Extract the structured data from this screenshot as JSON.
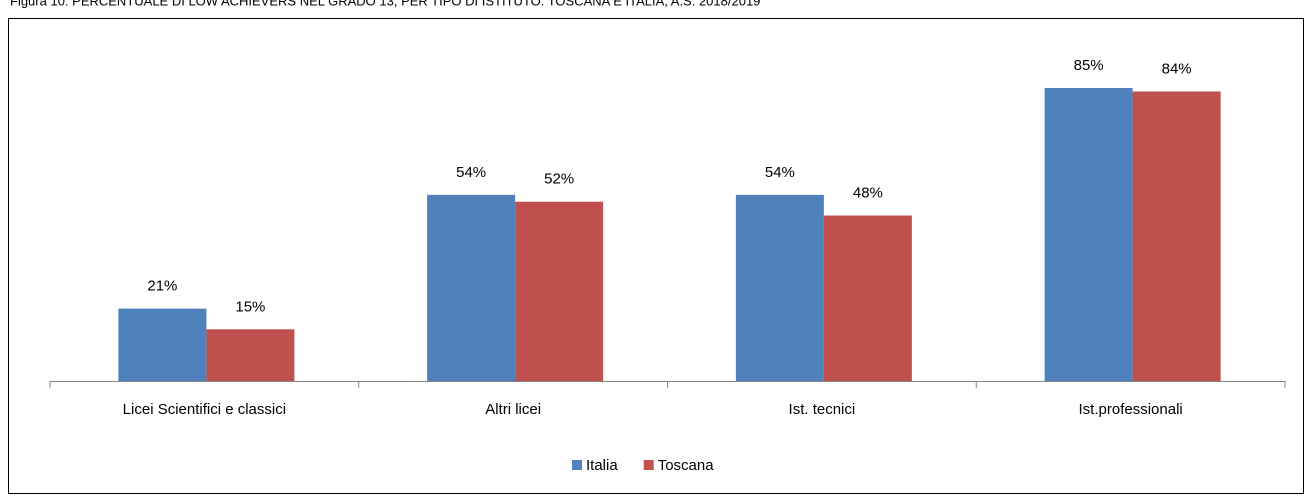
{
  "chart_data": {
    "type": "bar",
    "title": "Figura 10: PERCENTUALE DI LOW ACHIEVERS NEL GRADO 13, PER TIPO DI ISTITUTO. TOSCANA E ITALIA, A.S. 2018/2019",
    "categories": [
      "Licei Scientifici e classici",
      "Altri licei",
      "Ist. tecnici",
      "Ist.professionali"
    ],
    "series": [
      {
        "name": "Italia",
        "color": "#4f81bd",
        "values": [
          21,
          54,
          54,
          85
        ],
        "value_labels": [
          "21%",
          "54%",
          "54%",
          "85%"
        ]
      },
      {
        "name": "Toscana",
        "color": "#c0504d",
        "values": [
          15,
          52,
          48,
          84
        ],
        "value_labels": [
          "15%",
          "52%",
          "48%",
          "84%"
        ]
      }
    ],
    "legend": "bottom"
  }
}
